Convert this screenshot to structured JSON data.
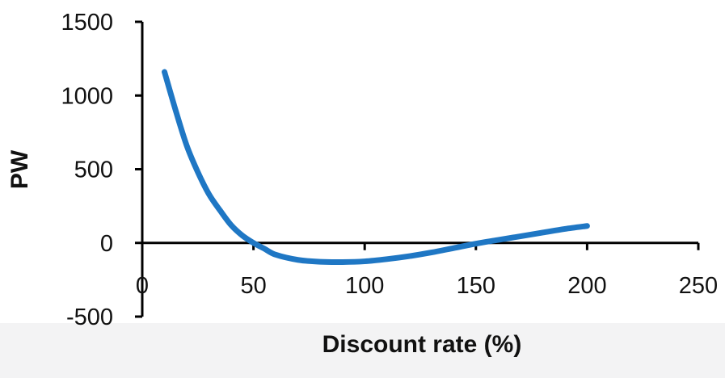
{
  "chart_data": {
    "type": "line",
    "title": "",
    "xlabel": "Discount rate (%)",
    "ylabel": "PW",
    "xlim": [
      0,
      250
    ],
    "ylim": [
      -500,
      1500
    ],
    "x_ticks": [
      0,
      50,
      100,
      150,
      200,
      250
    ],
    "y_ticks": [
      1500,
      1000,
      500,
      0,
      -500
    ],
    "grid": false,
    "legend": "none",
    "series": [
      {
        "color": "#1f77c4",
        "x": [
          10,
          15,
          20,
          25,
          30,
          35,
          40,
          45,
          50,
          55,
          60,
          70,
          80,
          90,
          100,
          110,
          120,
          130,
          140,
          150,
          160,
          170,
          180,
          190,
          200
        ],
        "y": [
          1160,
          900,
          660,
          480,
          330,
          220,
          120,
          50,
          0,
          -40,
          -80,
          -115,
          -128,
          -130,
          -125,
          -110,
          -90,
          -65,
          -35,
          -5,
          20,
          45,
          70,
          95,
          115
        ]
      }
    ]
  }
}
